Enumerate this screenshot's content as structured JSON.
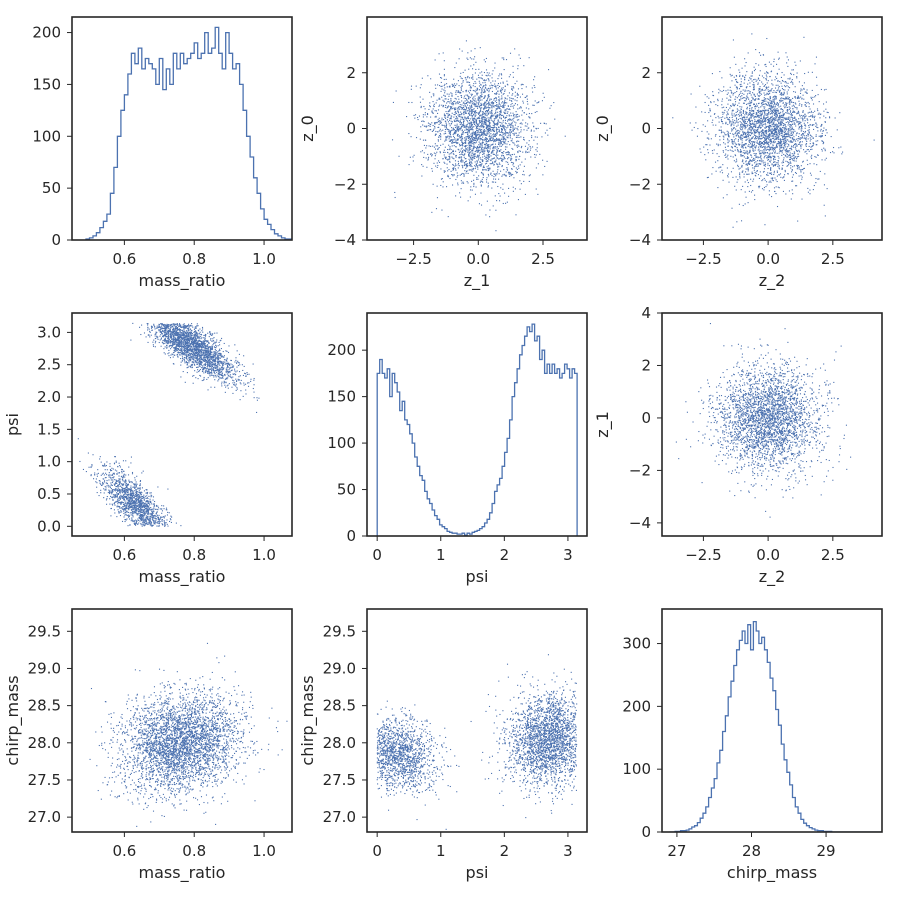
{
  "figure": {
    "background": "#ffffff",
    "series_color": "#4c72b0",
    "axis_color": "#262626"
  },
  "chart_data": [
    {
      "id": "p00",
      "type": "histogram",
      "histtype": "step",
      "xlabel": "mass_ratio",
      "ylabel": "",
      "xlim": [
        0.45,
        1.08
      ],
      "ylim": [
        0,
        215
      ],
      "xticks": [
        0.6,
        0.8,
        1.0
      ],
      "xtick_labels": [
        "0.6",
        "0.8",
        "1.0"
      ],
      "yticks": [
        0,
        50,
        100,
        150,
        200
      ],
      "ytick_labels": [
        "0",
        "50",
        "100",
        "150",
        "200"
      ],
      "bin_start": 0.49,
      "bin_width": 0.01,
      "counts": [
        1,
        2,
        4,
        7,
        12,
        18,
        25,
        45,
        70,
        100,
        125,
        140,
        160,
        180,
        170,
        185,
        165,
        175,
        170,
        165,
        150,
        175,
        145,
        165,
        150,
        180,
        165,
        180,
        170,
        175,
        180,
        190,
        175,
        180,
        200,
        180,
        185,
        205,
        180,
        165,
        200,
        180,
        165,
        170,
        150,
        125,
        100,
        80,
        60,
        45,
        30,
        20,
        15,
        10,
        6,
        4,
        2,
        1,
        1
      ]
    },
    {
      "id": "p01",
      "type": "scatter",
      "xlabel": "z_1",
      "ylabel": "z_0",
      "xlim": [
        -4.3,
        4.2
      ],
      "ylim": [
        -4,
        4
      ],
      "xticks": [
        -2.5,
        0,
        2.5
      ],
      "xtick_labels": [
        "−2.5",
        "0.0",
        "2.5"
      ],
      "yticks": [
        -4,
        -2,
        0,
        2
      ],
      "ytick_labels": [
        "−4",
        "−2",
        "0",
        "2"
      ],
      "clusters": [
        {
          "cx": 0,
          "cy": 0,
          "sx": 1.0,
          "sy": 1.0,
          "rho": 0,
          "n": 2800
        }
      ]
    },
    {
      "id": "p02",
      "type": "scatter",
      "xlabel": "z_2",
      "ylabel": "z_0",
      "xlim": [
        -4.1,
        4.4
      ],
      "ylim": [
        -4,
        4
      ],
      "xticks": [
        -2.5,
        0,
        2.5
      ],
      "xtick_labels": [
        "−2.5",
        "0.0",
        "2.5"
      ],
      "yticks": [
        -4,
        -2,
        0,
        2
      ],
      "ytick_labels": [
        "−4",
        "−2",
        "0",
        "2"
      ],
      "clusters": [
        {
          "cx": 0,
          "cy": 0,
          "sx": 1.0,
          "sy": 1.0,
          "rho": 0,
          "n": 2800
        }
      ]
    },
    {
      "id": "p10",
      "type": "scatter",
      "xlabel": "mass_ratio",
      "ylabel": "psi",
      "xlim": [
        0.45,
        1.08
      ],
      "ylim": [
        -0.15,
        3.3
      ],
      "xticks": [
        0.6,
        0.8,
        1.0
      ],
      "xtick_labels": [
        "0.6",
        "0.8",
        "1.0"
      ],
      "yticks": [
        0,
        0.5,
        1.0,
        1.5,
        2.0,
        2.5,
        3.0
      ],
      "ytick_labels": [
        "0.0",
        "0.5",
        "1.0",
        "1.5",
        "2.0",
        "2.5",
        "3.0"
      ],
      "clusters": [
        {
          "cx": 0.79,
          "cy": 2.8,
          "sx": 0.065,
          "sy": 0.28,
          "rho": -0.8,
          "n": 2200,
          "ymax": 3.14
        },
        {
          "cx": 0.63,
          "cy": 0.35,
          "sx": 0.05,
          "sy": 0.28,
          "rho": -0.75,
          "n": 1300,
          "ymin": 0.0
        }
      ]
    },
    {
      "id": "p11",
      "type": "histogram",
      "histtype": "step",
      "xlabel": "psi",
      "ylabel": "",
      "xlim": [
        -0.16,
        3.3
      ],
      "ylim": [
        0,
        240
      ],
      "xticks": [
        0,
        1,
        2,
        3
      ],
      "xtick_labels": [
        "0",
        "1",
        "2",
        "3"
      ],
      "yticks": [
        0,
        50,
        100,
        150,
        200
      ],
      "ytick_labels": [
        "0",
        "50",
        "100",
        "150",
        "200"
      ],
      "bin_start": 0.0,
      "bin_width": 0.0393,
      "counts": [
        175,
        190,
        175,
        170,
        180,
        150,
        175,
        165,
        155,
        135,
        145,
        125,
        120,
        110,
        100,
        85,
        75,
        65,
        60,
        48,
        40,
        35,
        28,
        22,
        18,
        12,
        10,
        8,
        5,
        4,
        3,
        3,
        2,
        2,
        3,
        1,
        3,
        2,
        4,
        5,
        6,
        8,
        10,
        14,
        18,
        25,
        35,
        48,
        55,
        62,
        75,
        90,
        105,
        125,
        150,
        165,
        180,
        195,
        205,
        215,
        225,
        220,
        228,
        210,
        215,
        190,
        200,
        175,
        185,
        175,
        185,
        175,
        180,
        170,
        175,
        185,
        180,
        170,
        180,
        175
      ]
    },
    {
      "id": "p12",
      "type": "scatter",
      "xlabel": "z_2",
      "ylabel": "z_1",
      "xlim": [
        -4.1,
        4.4
      ],
      "ylim": [
        -4.5,
        4
      ],
      "xticks": [
        -2.5,
        0,
        2.5
      ],
      "xtick_labels": [
        "−2.5",
        "0.0",
        "2.5"
      ],
      "yticks": [
        -4,
        -2,
        0,
        2,
        4
      ],
      "ytick_labels": [
        "−4",
        "−2",
        "0",
        "2",
        "4"
      ],
      "clusters": [
        {
          "cx": 0,
          "cy": 0,
          "sx": 1.0,
          "sy": 1.0,
          "rho": 0,
          "n": 2800
        }
      ]
    },
    {
      "id": "p20",
      "type": "scatter",
      "xlabel": "mass_ratio",
      "ylabel": "chirp_mass",
      "xlim": [
        0.45,
        1.08
      ],
      "ylim": [
        26.8,
        29.8
      ],
      "xticks": [
        0.6,
        0.8,
        1.0
      ],
      "xtick_labels": [
        "0.6",
        "0.8",
        "1.0"
      ],
      "yticks": [
        27.0,
        27.5,
        28.0,
        28.5,
        29.0,
        29.5
      ],
      "ytick_labels": [
        "27.0",
        "27.5",
        "28.0",
        "28.5",
        "29.0",
        "29.5"
      ],
      "clusters": [
        {
          "cx": 0.76,
          "cy": 28.0,
          "sx": 0.085,
          "sy": 0.33,
          "rho": 0.15,
          "n": 3500
        }
      ]
    },
    {
      "id": "p21",
      "type": "scatter",
      "xlabel": "psi",
      "ylabel": "chirp_mass",
      "xlim": [
        -0.16,
        3.3
      ],
      "ylim": [
        26.8,
        29.8
      ],
      "xticks": [
        0,
        1,
        2,
        3
      ],
      "xtick_labels": [
        "0",
        "1",
        "2",
        "3"
      ],
      "yticks": [
        27.0,
        27.5,
        28.0,
        28.5,
        29.0,
        29.5
      ],
      "ytick_labels": [
        "27.0",
        "27.5",
        "28.0",
        "28.5",
        "29.0",
        "29.5"
      ],
      "clusters": [
        {
          "cx": 0.3,
          "cy": 27.85,
          "sx": 0.32,
          "sy": 0.26,
          "rho": -0.2,
          "n": 1300,
          "xmin": 0.0
        },
        {
          "cx": 2.7,
          "cy": 28.05,
          "sx": 0.32,
          "sy": 0.32,
          "rho": 0.1,
          "n": 2200,
          "xmax": 3.14
        }
      ]
    },
    {
      "id": "p22",
      "type": "histogram",
      "histtype": "step",
      "xlabel": "chirp_mass",
      "ylabel": "",
      "xlim": [
        26.8,
        29.75
      ],
      "ylim": [
        0,
        355
      ],
      "xticks": [
        27,
        28,
        29
      ],
      "xtick_labels": [
        "27",
        "28",
        "29"
      ],
      "yticks": [
        0,
        100,
        200,
        300
      ],
      "ytick_labels": [
        "0",
        "100",
        "200",
        "300"
      ],
      "bin_start": 26.9,
      "bin_width": 0.0375,
      "counts": [
        0,
        0,
        1,
        1,
        2,
        2,
        3,
        5,
        8,
        10,
        15,
        22,
        30,
        40,
        55,
        70,
        85,
        110,
        130,
        160,
        185,
        215,
        240,
        265,
        290,
        305,
        320,
        300,
        330,
        290,
        335,
        320,
        300,
        310,
        290,
        270,
        245,
        225,
        195,
        170,
        140,
        115,
        95,
        75,
        55,
        40,
        30,
        20,
        14,
        10,
        7,
        5,
        3,
        2,
        2,
        1,
        1,
        1,
        0,
        0,
        0,
        0,
        0,
        0,
        0,
        0,
        0,
        0,
        0,
        0,
        0,
        0,
        0,
        0,
        0,
        0,
        0,
        0,
        0
      ]
    }
  ]
}
